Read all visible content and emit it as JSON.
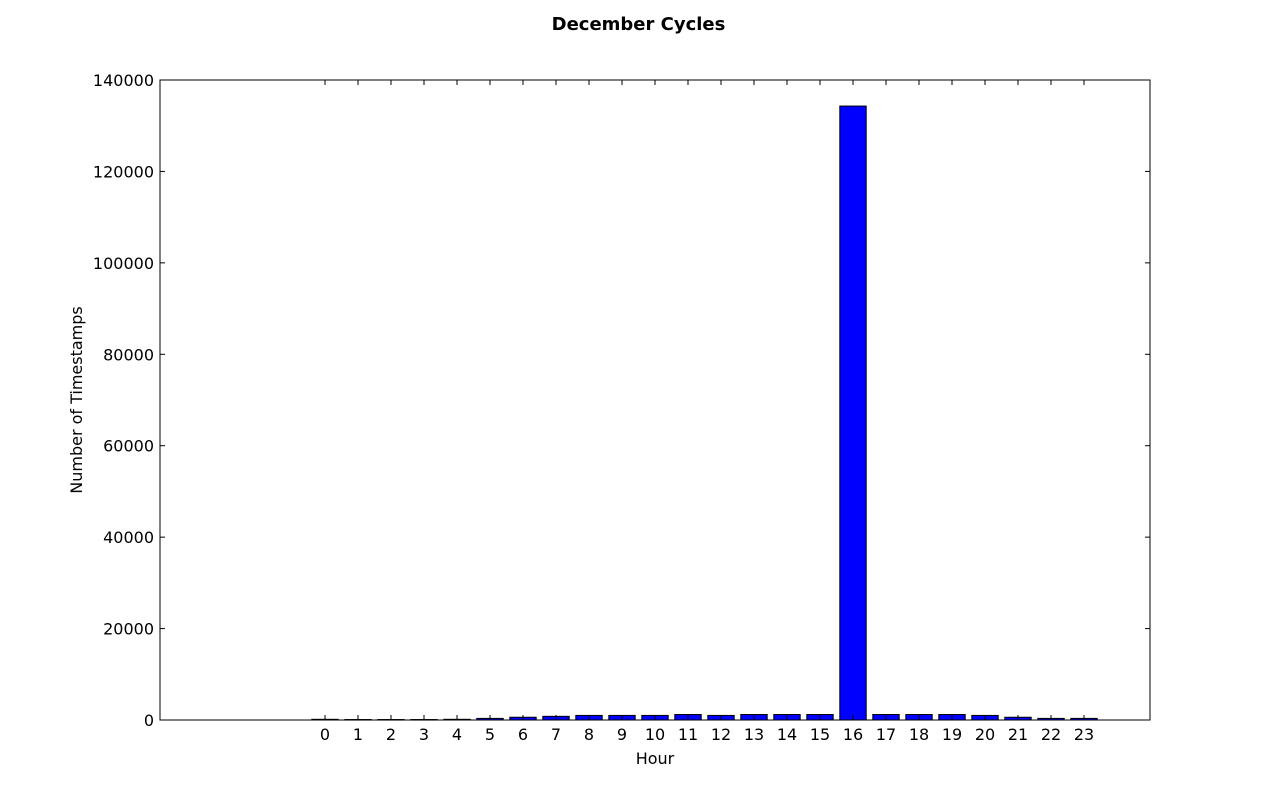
{
  "chart_data": {
    "type": "bar",
    "title": "December Cycles",
    "xlabel": "Hour",
    "ylabel": "Number of Timestamps",
    "categories": [
      "0",
      "1",
      "2",
      "3",
      "4",
      "5",
      "6",
      "7",
      "8",
      "9",
      "10",
      "11",
      "12",
      "13",
      "14",
      "15",
      "16",
      "17",
      "18",
      "19",
      "20",
      "21",
      "22",
      "23"
    ],
    "values": [
      150,
      100,
      100,
      100,
      150,
      350,
      600,
      800,
      1000,
      1000,
      1000,
      1200,
      1000,
      1200,
      1200,
      1200,
      134300,
      1200,
      1200,
      1200,
      1000,
      600,
      350,
      350
    ],
    "xlim": [
      -5,
      25
    ],
    "ylim": [
      0,
      140000
    ],
    "yticks": [
      0,
      20000,
      40000,
      60000,
      80000,
      100000,
      120000,
      140000
    ],
    "ytick_labels": [
      "0",
      "20000",
      "40000",
      "60000",
      "80000",
      "100000",
      "120000",
      "140000"
    ],
    "bar_color": "#0000ff",
    "edge_color": "#000000",
    "grid": false,
    "legend": "none"
  }
}
